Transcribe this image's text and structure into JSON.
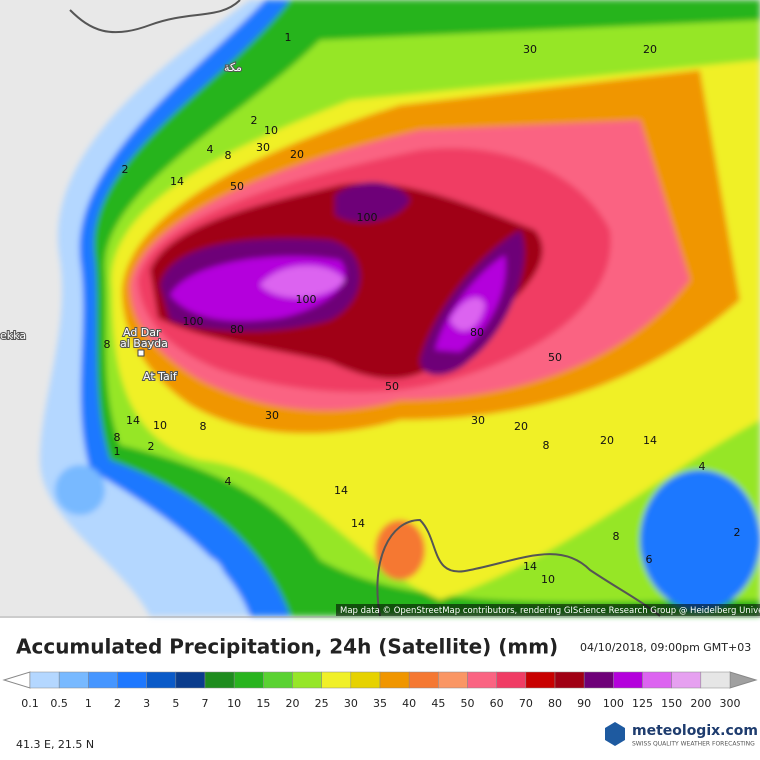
{
  "map": {
    "place_labels": [
      "مكة",
      "ekka",
      "Ad Dar",
      "al Bayda",
      "At Taif"
    ],
    "contour_labels": [
      "1",
      "30",
      "20",
      "2",
      "14",
      "2",
      "10",
      "4",
      "8",
      "30",
      "20",
      "50",
      "100",
      "100",
      "100",
      "80",
      "8",
      "80",
      "50",
      "50",
      "30",
      "30",
      "14",
      "10",
      "8",
      "8",
      "1",
      "2",
      "20",
      "20",
      "14",
      "8",
      "4",
      "4",
      "14",
      "14",
      "2",
      "8",
      "6",
      "14",
      "10"
    ],
    "attribution": "Map data © OpenStreetMap contributors, rendering GIScience Research Group @ Heidelberg University"
  },
  "header": {
    "title": "Accumulated Precipitation, 24h (Satellite) (mm)",
    "timestamp": "04/10/2018, 09:00pm GMT+03"
  },
  "legend": {
    "labels": [
      "0.1",
      "0.5",
      "1",
      "2",
      "3",
      "5",
      "7",
      "10",
      "15",
      "20",
      "25",
      "30",
      "35",
      "40",
      "45",
      "50",
      "60",
      "70",
      "80",
      "90",
      "100",
      "125",
      "150",
      "200",
      "300"
    ],
    "colors": [
      "#b4d7ff",
      "#78b9ff",
      "#4696ff",
      "#1e78ff",
      "#0a5ac8",
      "#0a3c8c",
      "#1e8c1e",
      "#28b41e",
      "#5ad232",
      "#96e628",
      "#f0f028",
      "#e6d200",
      "#f09600",
      "#f57832",
      "#fa9664",
      "#fa6482",
      "#f03c64",
      "#c80000",
      "#a00014",
      "#6e0078",
      "#b400dc",
      "#dc64f0",
      "#e6a0f0",
      "#e6e6e6"
    ]
  },
  "footer": {
    "coordinates": "41.3 E, 21.5 N",
    "logo": "meteologix.com",
    "tagline": "SWISS QUALITY WEATHER FORECASTING"
  }
}
